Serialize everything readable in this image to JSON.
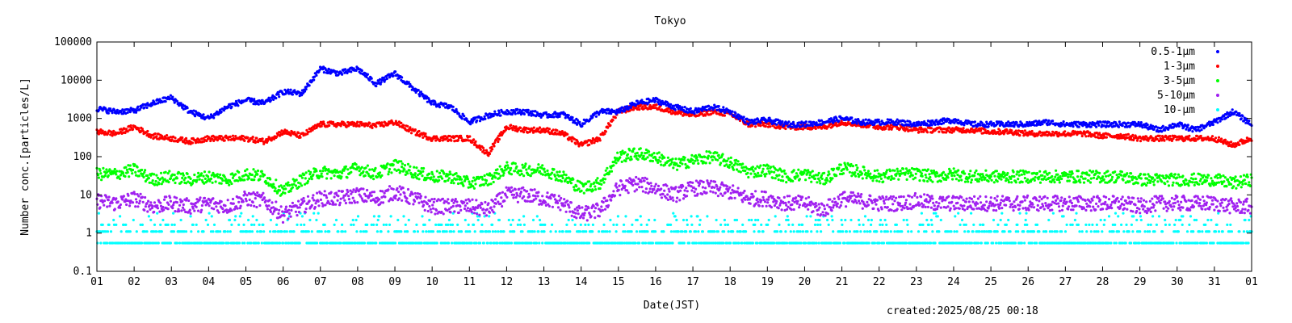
{
  "chart_data": {
    "type": "scatter",
    "title": "Tokyo",
    "xlabel": "Date(JST)",
    "ylabel": "Number conc.[particles/L]",
    "yscale": "log",
    "ylim": [
      0.1,
      100000
    ],
    "xlim": [
      1,
      32
    ],
    "x_tick_labels": [
      "01",
      "02",
      "03",
      "04",
      "05",
      "06",
      "07",
      "08",
      "09",
      "10",
      "11",
      "12",
      "13",
      "14",
      "15",
      "16",
      "17",
      "18",
      "19",
      "20",
      "21",
      "22",
      "23",
      "24",
      "25",
      "26",
      "27",
      "28",
      "29",
      "30",
      "31",
      "01"
    ],
    "y_tick_labels": [
      "0.1",
      "1",
      "10",
      "100",
      "1000",
      "10000",
      "100000"
    ],
    "y_tick_values": [
      0.1,
      1,
      10,
      100,
      1000,
      10000,
      100000
    ],
    "legend_position": "top-right",
    "grid": false,
    "created": "created:2025/08/25 00:18",
    "series": [
      {
        "name": "0.5-1μm",
        "color": "#0000ff",
        "x": [
          1,
          1.5,
          2,
          2.5,
          3,
          3.5,
          4,
          4.5,
          5,
          5.5,
          6,
          6.5,
          7,
          7.5,
          8,
          8.5,
          9,
          9.5,
          10,
          10.5,
          11,
          11.5,
          12,
          12.5,
          13,
          13.5,
          14,
          14.5,
          15,
          15.5,
          16,
          16.5,
          17,
          17.5,
          18,
          18.5,
          19,
          19.5,
          20,
          20.5,
          21,
          21.5,
          22,
          22.5,
          23,
          23.5,
          24,
          24.5,
          25,
          25.5,
          26,
          26.5,
          27,
          27.5,
          28,
          28.5,
          29,
          29.5,
          30,
          30.5,
          31,
          31.5,
          32
        ],
        "values": [
          1800,
          1500,
          1600,
          2500,
          3500,
          1500,
          1000,
          2000,
          3000,
          2500,
          5000,
          4500,
          20000,
          15000,
          20000,
          8000,
          15000,
          6000,
          2500,
          2000,
          800,
          1200,
          1500,
          1500,
          1200,
          1300,
          700,
          1500,
          1500,
          2500,
          3000,
          2000,
          1500,
          2000,
          1500,
          800,
          900,
          700,
          700,
          800,
          1000,
          800,
          800,
          800,
          700,
          800,
          900,
          700,
          700,
          700,
          700,
          800,
          700,
          700,
          700,
          700,
          700,
          500,
          700,
          500,
          800,
          1500,
          700
        ]
      },
      {
        "name": "1-3μm",
        "color": "#ff0000",
        "x": [
          1,
          1.5,
          2,
          2.5,
          3,
          3.5,
          4,
          4.5,
          5,
          5.5,
          6,
          6.5,
          7,
          7.5,
          8,
          8.5,
          9,
          9.5,
          10,
          10.5,
          11,
          11.5,
          12,
          12.5,
          13,
          13.5,
          14,
          14.5,
          15,
          15.5,
          16,
          16.5,
          17,
          17.5,
          18,
          18.5,
          19,
          19.5,
          20,
          20.5,
          21,
          21.5,
          22,
          22.5,
          23,
          23.5,
          24,
          24.5,
          25,
          25.5,
          26,
          26.5,
          27,
          27.5,
          28,
          28.5,
          29,
          29.5,
          30,
          30.5,
          31,
          31.5,
          32
        ],
        "values": [
          450,
          400,
          600,
          350,
          300,
          250,
          300,
          300,
          300,
          250,
          450,
          350,
          700,
          700,
          700,
          650,
          800,
          450,
          300,
          300,
          300,
          120,
          600,
          500,
          500,
          400,
          200,
          300,
          1500,
          2000,
          2000,
          1500,
          1200,
          1500,
          1300,
          700,
          700,
          600,
          600,
          600,
          800,
          700,
          600,
          600,
          500,
          500,
          500,
          500,
          450,
          450,
          400,
          400,
          400,
          400,
          350,
          350,
          300,
          300,
          300,
          300,
          300,
          200,
          300
        ]
      },
      {
        "name": "3-5μm",
        "color": "#00ff00",
        "x": [
          1,
          1.5,
          2,
          2.5,
          3,
          3.5,
          4,
          4.5,
          5,
          5.5,
          6,
          6.5,
          7,
          7.5,
          8,
          8.5,
          9,
          9.5,
          10,
          10.5,
          11,
          11.5,
          12,
          12.5,
          13,
          13.5,
          14,
          14.5,
          15,
          15.5,
          16,
          16.5,
          17,
          17.5,
          18,
          18.5,
          19,
          19.5,
          20,
          20.5,
          21,
          21.5,
          22,
          22.5,
          23,
          23.5,
          24,
          24.5,
          25,
          25.5,
          26,
          26.5,
          27,
          27.5,
          28,
          28.5,
          29,
          29.5,
          30,
          30.5,
          31,
          31.5,
          32
        ],
        "values": [
          35,
          35,
          45,
          25,
          30,
          25,
          30,
          25,
          35,
          30,
          12,
          25,
          40,
          35,
          50,
          35,
          60,
          40,
          30,
          30,
          20,
          25,
          50,
          45,
          45,
          30,
          15,
          20,
          100,
          120,
          100,
          60,
          80,
          100,
          70,
          40,
          45,
          30,
          35,
          25,
          50,
          40,
          30,
          35,
          35,
          30,
          35,
          30,
          30,
          30,
          30,
          30,
          30,
          30,
          30,
          30,
          25,
          25,
          25,
          25,
          25,
          20,
          25
        ]
      },
      {
        "name": "5-10μm",
        "color": "#a020f0",
        "x": [
          1,
          1.5,
          2,
          2.5,
          3,
          3.5,
          4,
          4.5,
          5,
          5.5,
          6,
          6.5,
          7,
          7.5,
          8,
          8.5,
          9,
          9.5,
          10,
          10.5,
          11,
          11.5,
          12,
          12.5,
          13,
          13.5,
          14,
          14.5,
          15,
          15.5,
          16,
          16.5,
          17,
          17.5,
          18,
          18.5,
          19,
          19.5,
          20,
          20.5,
          21,
          21.5,
          22,
          22.5,
          23,
          23.5,
          24,
          24.5,
          25,
          25.5,
          26,
          26.5,
          27,
          27.5,
          28,
          28.5,
          29,
          29.5,
          30,
          30.5,
          31,
          31.5,
          32
        ],
        "values": [
          7,
          6,
          8,
          5,
          6,
          5,
          6,
          5,
          8,
          7,
          3,
          5,
          8,
          8,
          10,
          8,
          12,
          8,
          5,
          5,
          5,
          4,
          10,
          10,
          8,
          6,
          3,
          4,
          15,
          20,
          15,
          10,
          15,
          15,
          12,
          8,
          8,
          6,
          6,
          4,
          8,
          7,
          6,
          6,
          7,
          6,
          6,
          6,
          6,
          6,
          6,
          6,
          6,
          6,
          6,
          6,
          5,
          6,
          6,
          6,
          6,
          5,
          5
        ]
      },
      {
        "name": "10-μm",
        "color": "#00ffff",
        "x": [
          1,
          1.5,
          2,
          2.5,
          3,
          3.5,
          4,
          4.5,
          5,
          5.5,
          6,
          6.5,
          7,
          7.5,
          8,
          8.5,
          9,
          9.5,
          10,
          10.5,
          11,
          11.5,
          12,
          12.5,
          13,
          13.5,
          14,
          14.5,
          15,
          15.5,
          16,
          16.5,
          17,
          17.5,
          18,
          18.5,
          19,
          19.5,
          20,
          20.5,
          21,
          21.5,
          22,
          22.5,
          23,
          23.5,
          24,
          24.5,
          25,
          25.5,
          26,
          26.5,
          27,
          27.5,
          28,
          28.5,
          29,
          29.5,
          30,
          30.5,
          31,
          31.5,
          32
        ],
        "values": [
          0.55,
          0.55,
          0.55,
          0.55,
          0.55,
          0.55,
          0.55,
          0.55,
          0.55,
          0.55,
          0.55,
          0.55,
          0.55,
          0.55,
          0.55,
          0.55,
          0.55,
          0.55,
          0.55,
          0.55,
          0.55,
          0.55,
          0.55,
          0.55,
          0.55,
          0.55,
          0.55,
          0.55,
          0.55,
          0.55,
          0.55,
          0.55,
          0.55,
          0.55,
          0.55,
          0.55,
          0.55,
          0.55,
          0.55,
          0.55,
          0.55,
          0.55,
          0.55,
          0.55,
          0.55,
          0.55,
          0.55,
          0.55,
          0.55,
          0.55,
          0.55,
          0.55,
          0.55,
          0.55,
          0.55,
          0.55,
          0.55,
          0.55,
          0.55,
          0.55,
          0.55,
          0.55,
          0.55
        ],
        "discrete_levels": [
          0.55,
          1.1,
          1.65,
          2.2,
          2.75,
          3.3
        ]
      }
    ]
  }
}
